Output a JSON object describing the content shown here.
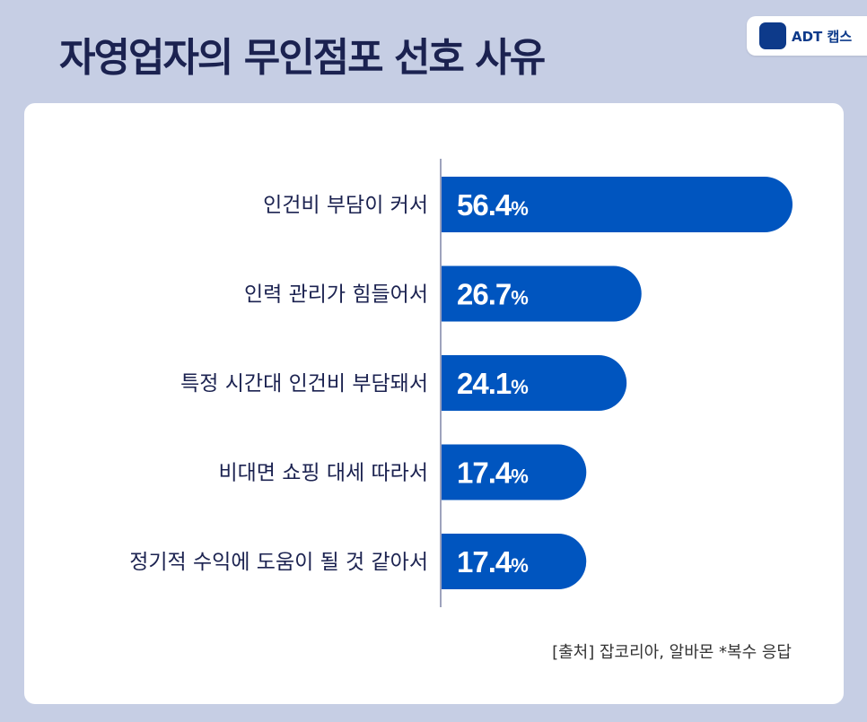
{
  "title": "자영업자의 무인점포 선호 사유",
  "logo": {
    "badge": "ADT",
    "text": "ADT 캡스"
  },
  "source": "[출처] 잡코리아, 알바몬 *복수 응답",
  "colors": {
    "bar": "#0055bf",
    "background": "#c6cee4",
    "title": "#1b2250"
  },
  "chart_data": {
    "type": "bar",
    "orientation": "horizontal",
    "categories": [
      "인건비 부담이 커서",
      "인력 관리가 힘들어서",
      "특정 시간대 인건비 부담돼서",
      "비대면 쇼핑 대세 따라서",
      "정기적 수익에 도움이 될 것 같아서"
    ],
    "values": [
      56.4,
      26.7,
      24.1,
      17.4,
      17.4
    ],
    "labels": [
      "56.4",
      "26.7",
      "24.1",
      "17.4",
      "17.4"
    ],
    "unit": "%",
    "grid": false
  }
}
